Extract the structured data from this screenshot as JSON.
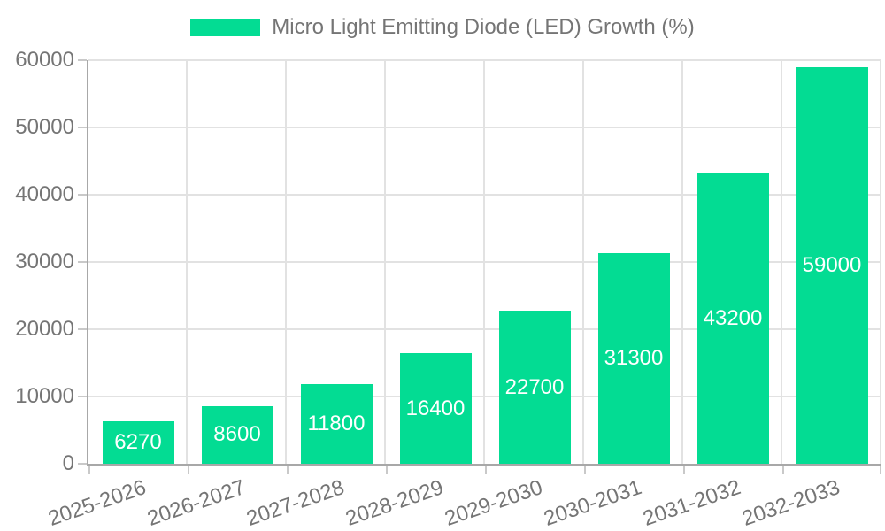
{
  "chart_data": {
    "type": "bar",
    "title": "Micro Light Emitting Diode (LED) Growth (%)",
    "categories": [
      "2025-2026",
      "2026-2027",
      "2027-2028",
      "2028-2029",
      "2029-2030",
      "2030-2031",
      "2031-2032",
      "2032-2033"
    ],
    "values": [
      6270,
      8600,
      11800,
      16400,
      22700,
      31300,
      43200,
      59000
    ],
    "bar_labels": [
      "6270",
      "8600",
      "11800",
      "16400",
      "22700",
      "31300",
      "43200",
      "59000"
    ],
    "ylim": [
      0,
      60000
    ],
    "yticks": [
      0,
      10000,
      20000,
      30000,
      40000,
      50000,
      60000
    ],
    "ytick_labels": [
      "0",
      "10000",
      "20000",
      "30000",
      "40000",
      "50000",
      "60000"
    ],
    "xlabel": "",
    "ylabel": "",
    "grid": true,
    "legend_position": "top",
    "colors": {
      "bar": "#03dc93",
      "bar_label": "#ffffff",
      "axis_text": "#757575",
      "axis_line": "#a8a8a8",
      "gridline": "#e2e2e2",
      "tick": "#c9c9c9",
      "background": "#ffffff"
    }
  }
}
